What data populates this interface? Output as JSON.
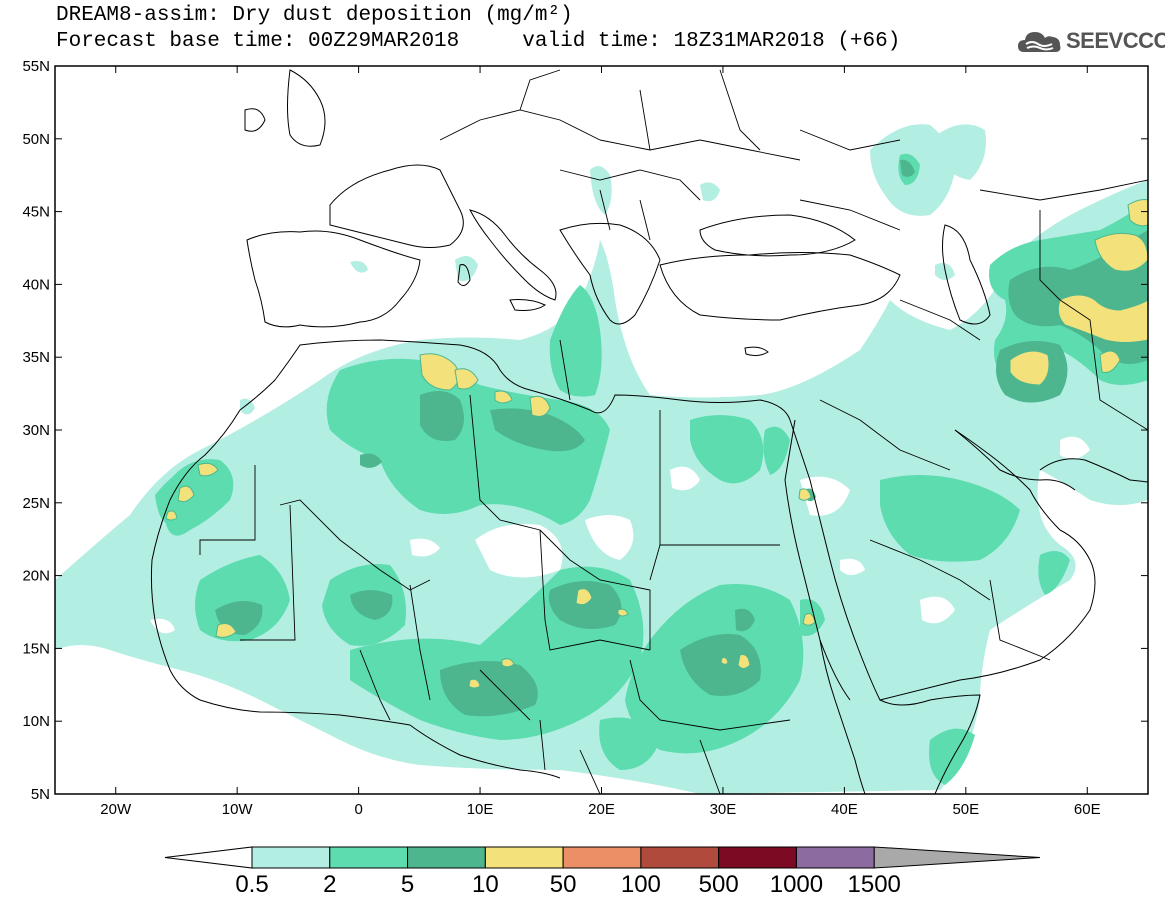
{
  "title": {
    "line1": "DREAM8-assim: Dry dust deposition (mg/m²)",
    "line2_left": "Forecast base time: 00Z29MAR2018",
    "line2_right": "valid time: 18Z31MAR2018 (+66)"
  },
  "logo": {
    "text": "SEEVCCC",
    "icon": "cloud-icon"
  },
  "map": {
    "lon_range": [
      -25,
      65
    ],
    "lat_range": [
      5,
      55
    ],
    "lat_ticks": [
      {
        "value": 55,
        "label": "55N"
      },
      {
        "value": 50,
        "label": "50N"
      },
      {
        "value": 45,
        "label": "45N"
      },
      {
        "value": 40,
        "label": "40N"
      },
      {
        "value": 35,
        "label": "35N"
      },
      {
        "value": 30,
        "label": "30N"
      },
      {
        "value": 25,
        "label": "25N"
      },
      {
        "value": 20,
        "label": "20N"
      },
      {
        "value": 15,
        "label": "15N"
      },
      {
        "value": 10,
        "label": "10N"
      },
      {
        "value": 5,
        "label": "5N"
      }
    ],
    "lon_ticks": [
      {
        "value": -20,
        "label": "20W"
      },
      {
        "value": -10,
        "label": "10W"
      },
      {
        "value": 0,
        "label": "0"
      },
      {
        "value": 10,
        "label": "10E"
      },
      {
        "value": 20,
        "label": "20E"
      },
      {
        "value": 30,
        "label": "30E"
      },
      {
        "value": 40,
        "label": "40E"
      },
      {
        "value": 50,
        "label": "50E"
      },
      {
        "value": 60,
        "label": "60E"
      }
    ]
  },
  "colorbar": {
    "colors": [
      "#b3eee2",
      "#5cdcaf",
      "#4db68f",
      "#f3e27b",
      "#ea8f66",
      "#b04a3c",
      "#7b0a22",
      "#8b6ba0",
      "#a9a9a9"
    ],
    "under_color": "#ffffff",
    "labels": [
      "0.5",
      "2",
      "5",
      "10",
      "50",
      "100",
      "500",
      "1000",
      "1500"
    ]
  }
}
